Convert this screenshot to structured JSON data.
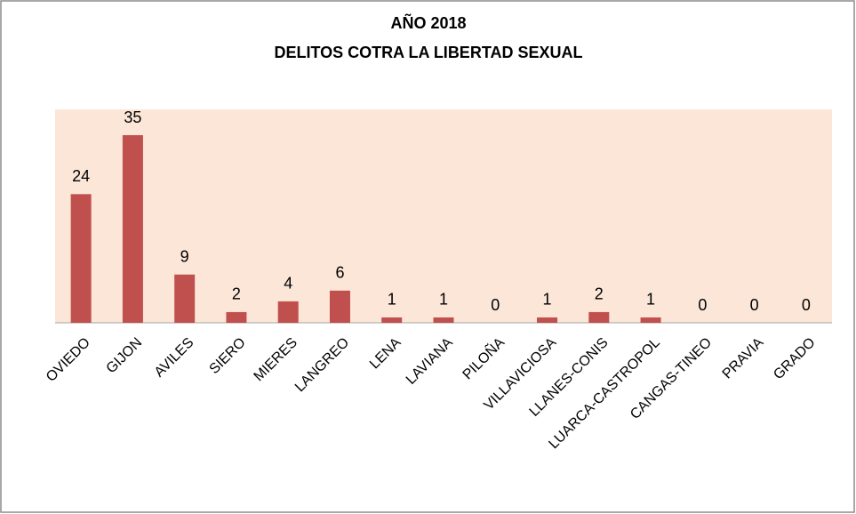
{
  "chart_data": {
    "type": "bar",
    "title": "AÑO 2018",
    "subtitle": "DELITOS COTRA LA LIBERTAD SEXUAL",
    "categories": [
      "OVIEDO",
      "GIJON",
      "AVILES",
      "SIERO",
      "MIERES",
      "LANGREO",
      "LENA",
      "LAVIANA",
      "PILOÑA",
      "VILLAVICIOSA",
      "LLANES-CONIS",
      "LUARCA-CASTROPOL",
      "CANGAS-TINEO",
      "PRAVIA",
      "GRADO"
    ],
    "values": [
      24,
      35,
      9,
      2,
      4,
      6,
      1,
      1,
      0,
      1,
      2,
      1,
      0,
      0,
      0
    ],
    "color": "#c0504d"
  }
}
